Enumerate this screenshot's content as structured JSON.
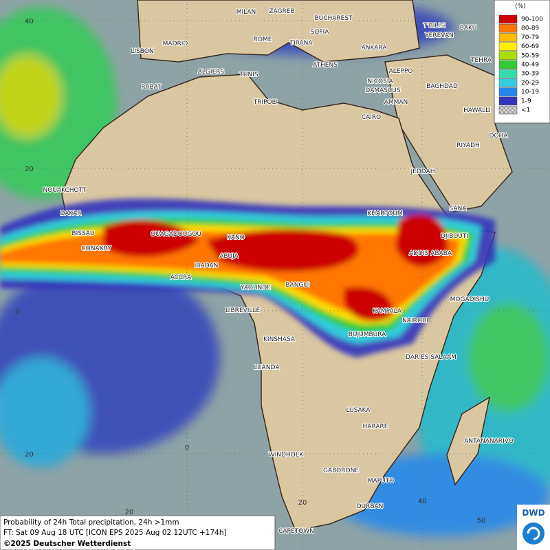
{
  "legend": {
    "title": "(%)",
    "items": [
      {
        "label": "90-100",
        "color": "#cc0000"
      },
      {
        "label": "80-89",
        "color": "#ff7700"
      },
      {
        "label": "70-79",
        "color": "#ffbb00"
      },
      {
        "label": "60-69",
        "color": "#ffee00"
      },
      {
        "label": "50-59",
        "color": "#aadd00"
      },
      {
        "label": "40-49",
        "color": "#33cc33"
      },
      {
        "label": "30-39",
        "color": "#33ddaa"
      },
      {
        "label": "20-29",
        "color": "#33ccdd"
      },
      {
        "label": "10-19",
        "color": "#2288ee"
      },
      {
        "label": "1-9",
        "color": "#3333bb"
      },
      {
        "label": "<1",
        "color": "#bbbbbb"
      }
    ]
  },
  "cities": [
    "MILAN",
    "ZAGREB",
    "BUCHAREST",
    "T'BILISI",
    "BAKU",
    "MADRID",
    "ROME",
    "SOFIA",
    "TIRANA",
    "ANKARA",
    "YEREVAN",
    "LISBON",
    "ATHENS",
    "TEHRA",
    "ALGIERS",
    "TUNIS",
    "ALEPPO",
    "RABAT",
    "NICOSIA",
    "BAGHDAD",
    "TRIPOLI",
    "DAMASCUS",
    "AMMAN",
    "HAWALLI",
    "CAIRO",
    "DOHA",
    "RIYADH",
    "JEDDAH",
    "NOUAKCHOTT",
    "SANA",
    "KHARTOUM",
    "DAKAR",
    "DJIBOUTI",
    "BISSAU",
    "OUAGADOUGOU",
    "KANO",
    "CONAKRY",
    "ABUJA",
    "ADDIS ABABA",
    "IBADAN",
    "ACCRA",
    "YAOUNDE",
    "BANGUI",
    "MOGADISHU",
    "LIBREVILLE",
    "KAMPALA",
    "NAIROBI",
    "BUJUMBURA",
    "KINSHASA",
    "DAR ES SALAAM",
    "LUANDA",
    "LUSAKA",
    "HARARE",
    "ANTANANARIVO",
    "WINDHOEK",
    "GABORONE",
    "MAPUTO",
    "DURBAN",
    "CAPETOWN"
  ],
  "lat_labels": [
    "40",
    "20",
    "0",
    "20"
  ],
  "lon_labels": [
    "0",
    "20",
    "20",
    "40",
    "50"
  ],
  "footer": {
    "line1": "Probability of 24h Total precipitation, 24h >1mm",
    "line2": "FT: Sat 09 Aug 18 UTC [ICON EPS 2025 Aug 02 12UTC +174h]",
    "line3": "©2025 Deutscher Wetterdienst"
  },
  "logo": "DWD"
}
